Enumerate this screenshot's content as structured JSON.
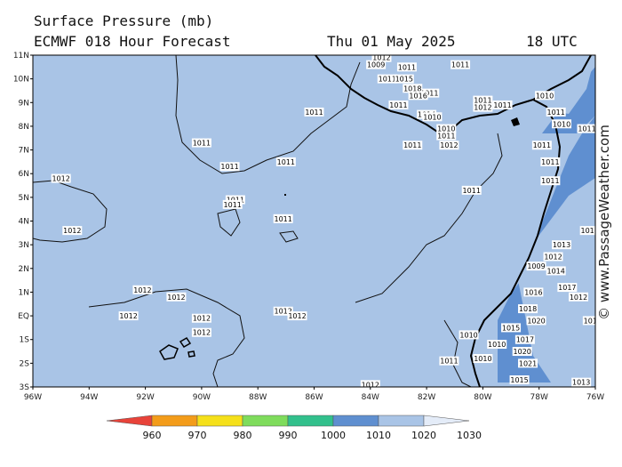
{
  "header": {
    "line1": "Surface Pressure (mb)",
    "line2": "ECMWF 018 Hour Forecast",
    "date": "Thu 01 May 2025",
    "time": "18 UTC"
  },
  "watermark": "© www.PassageWeather.com",
  "axes": {
    "lon_ticks": [
      "96W",
      "94W",
      "92W",
      "90W",
      "88W",
      "86W",
      "84W",
      "82W",
      "80W",
      "78W",
      "76W"
    ],
    "lat_ticks": [
      "11N",
      "10N",
      "9N",
      "8N",
      "7N",
      "6N",
      "5N",
      "4N",
      "3N",
      "2N",
      "1N",
      "EQ",
      "1S",
      "2S",
      "3S"
    ]
  },
  "colorbar": {
    "labels": [
      "960",
      "970",
      "980",
      "990",
      "1000",
      "1010",
      "1020",
      "1030"
    ],
    "colors": [
      "#e8433a",
      "#f39c1a",
      "#f5e01a",
      "#7fdc5c",
      "#32c08c",
      "#5f8fd0",
      "#a9c4e6",
      "#e4ecf8"
    ]
  },
  "colors": {
    "ocean": "#a9c4e6",
    "deep": "#5f8fd0"
  },
  "labels": [
    {
      "text": "1012",
      "lon": -95.0,
      "lat": 5.8
    },
    {
      "text": "1012",
      "lon": -94.6,
      "lat": 3.6
    },
    {
      "text": "1011",
      "lon": -90.0,
      "lat": 7.3
    },
    {
      "text": "1011",
      "lon": -89.0,
      "lat": 6.3
    },
    {
      "text": "1011",
      "lon": -88.8,
      "lat": 4.9
    },
    {
      "text": "1011",
      "lon": -88.9,
      "lat": 4.7
    },
    {
      "text": "1011",
      "lon": -87.0,
      "lat": 6.5
    },
    {
      "text": "1011",
      "lon": -86.0,
      "lat": 8.6
    },
    {
      "text": "1011",
      "lon": -87.1,
      "lat": 4.1
    },
    {
      "text": "1011",
      "lon": -82.5,
      "lat": 7.2
    },
    {
      "text": "1011",
      "lon": -80.4,
      "lat": 5.3
    },
    {
      "text": "1011",
      "lon": -81.9,
      "lat": 9.4
    },
    {
      "text": "1011",
      "lon": -80.8,
      "lat": 10.6
    },
    {
      "text": "1012",
      "lon": -92.1,
      "lat": 1.1
    },
    {
      "text": "1012",
      "lon": -90.9,
      "lat": 0.8
    },
    {
      "text": "1012",
      "lon": -92.6,
      "lat": 0.0
    },
    {
      "text": "1012",
      "lon": -90.0,
      "lat": -0.1
    },
    {
      "text": "1012",
      "lon": -90.0,
      "lat": -0.7
    },
    {
      "text": "1012",
      "lon": -87.1,
      "lat": 0.2
    },
    {
      "text": "1012",
      "lon": -86.6,
      "lat": 0.0
    },
    {
      "text": "1012",
      "lon": -84.0,
      "lat": -2.9
    },
    {
      "text": "1010",
      "lon": -80.5,
      "lat": -0.8
    },
    {
      "text": "1011",
      "lon": -81.2,
      "lat": -1.9
    },
    {
      "text": "1010",
      "lon": -80.0,
      "lat": -1.8
    },
    {
      "text": "1010",
      "lon": -79.5,
      "lat": -1.2
    },
    {
      "text": "1009",
      "lon": -78.1,
      "lat": 2.1
    },
    {
      "text": "1011",
      "lon": -77.9,
      "lat": 7.2
    },
    {
      "text": "1011",
      "lon": -77.6,
      "lat": 6.5
    },
    {
      "text": "1011",
      "lon": -77.6,
      "lat": 5.7
    },
    {
      "text": "1010",
      "lon": -77.8,
      "lat": 9.3
    },
    {
      "text": "1011",
      "lon": -80.0,
      "lat": 9.1
    },
    {
      "text": "1012",
      "lon": -80.0,
      "lat": 8.8
    },
    {
      "text": "1011",
      "lon": -79.3,
      "lat": 8.9
    },
    {
      "text": "1010",
      "lon": -81.3,
      "lat": 7.9
    },
    {
      "text": "1011",
      "lon": -81.3,
      "lat": 7.6
    },
    {
      "text": "1012",
      "lon": -81.2,
      "lat": 7.2
    },
    {
      "text": "1014",
      "lon": -82.0,
      "lat": 8.5
    },
    {
      "text": "1012",
      "lon": -83.6,
      "lat": 10.9
    },
    {
      "text": "1009",
      "lon": -83.8,
      "lat": 10.6
    },
    {
      "text": "1011",
      "lon": -82.7,
      "lat": 10.5
    },
    {
      "text": "1011",
      "lon": -83.4,
      "lat": 10.0
    },
    {
      "text": "1015",
      "lon": -82.8,
      "lat": 10.0
    },
    {
      "text": "1018",
      "lon": -82.5,
      "lat": 9.6
    },
    {
      "text": "1016",
      "lon": -82.3,
      "lat": 9.3
    },
    {
      "text": "1011",
      "lon": -83.0,
      "lat": 8.9
    },
    {
      "text": "1010",
      "lon": -81.8,
      "lat": 8.4
    },
    {
      "text": "1011",
      "lon": -77.4,
      "lat": 8.6
    },
    {
      "text": "1010",
      "lon": -77.2,
      "lat": 8.1
    },
    {
      "text": "1011",
      "lon": -76.3,
      "lat": 7.9
    },
    {
      "text": "1013",
      "lon": -77.2,
      "lat": 3.0
    },
    {
      "text": "1012",
      "lon": -77.5,
      "lat": 2.5
    },
    {
      "text": "1014",
      "lon": -77.4,
      "lat": 1.9
    },
    {
      "text": "1016",
      "lon": -78.2,
      "lat": 1.0
    },
    {
      "text": "1017",
      "lon": -77.0,
      "lat": 1.2
    },
    {
      "text": "1012",
      "lon": -76.6,
      "lat": 0.8
    },
    {
      "text": "1018",
      "lon": -78.4,
      "lat": 0.3
    },
    {
      "text": "1020",
      "lon": -78.1,
      "lat": -0.2
    },
    {
      "text": "1015",
      "lon": -79.0,
      "lat": -0.5
    },
    {
      "text": "1017",
      "lon": -78.5,
      "lat": -1.0
    },
    {
      "text": "1020",
      "lon": -78.6,
      "lat": -1.5
    },
    {
      "text": "1021",
      "lon": -78.4,
      "lat": -2.0
    },
    {
      "text": "1013",
      "lon": -76.5,
      "lat": -2.8
    },
    {
      "text": "1015",
      "lon": -78.7,
      "lat": -2.7
    },
    {
      "text": "1011",
      "lon": -76.1,
      "lat": -0.2
    },
    {
      "text": "1011",
      "lon": -76.2,
      "lat": 3.6
    }
  ]
}
